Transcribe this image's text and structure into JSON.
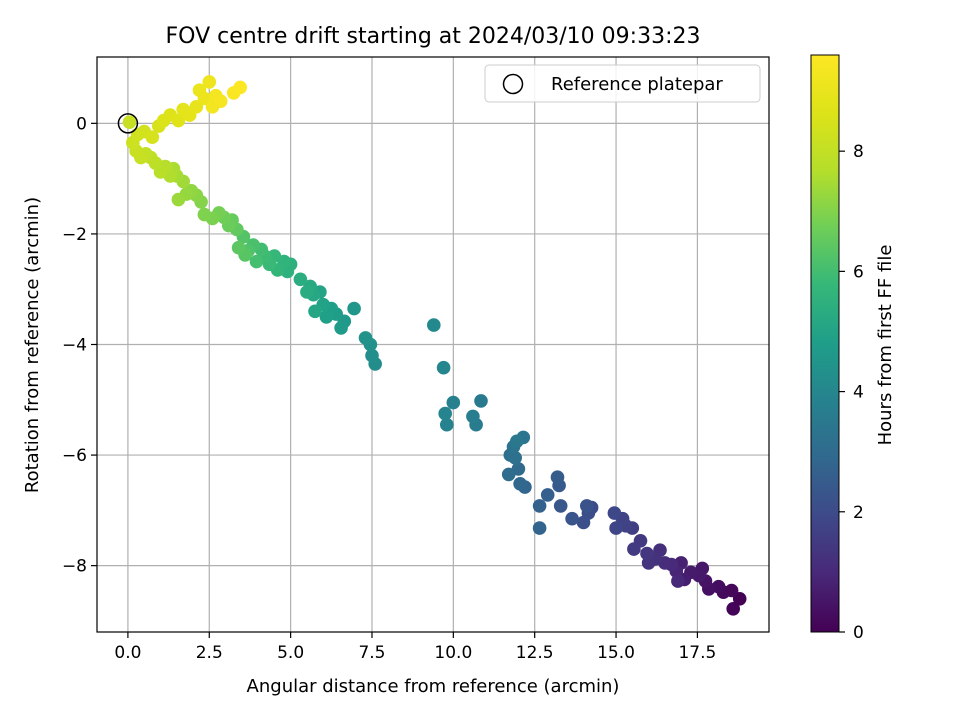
{
  "chart_data": {
    "type": "scatter",
    "title": "FOV centre drift starting at 2024/03/10 09:33:23",
    "xlabel": "Angular distance from reference (arcmin)",
    "ylabel": "Rotation from reference (arcmin)",
    "xlim": [
      -0.95,
      19.7
    ],
    "ylim": [
      -9.2,
      1.2
    ],
    "xticks": [
      "0.0",
      "2.5",
      "5.0",
      "7.5",
      "10.0",
      "12.5",
      "15.0",
      "17.5"
    ],
    "xtick_values": [
      0,
      2.5,
      5,
      7.5,
      10,
      12.5,
      15,
      17.5
    ],
    "yticks": [
      "0",
      "−2",
      "−4",
      "−6",
      "−8"
    ],
    "ytick_values": [
      0,
      -2,
      -4,
      -6,
      -8
    ],
    "grid": true,
    "legend": {
      "entries": [
        "Reference platepar"
      ],
      "position": "upper-right"
    },
    "reference_point": {
      "x": 0,
      "y": 0
    },
    "colormap": "viridis",
    "colorbar": {
      "label": "Hours from first FF file",
      "range": [
        0,
        9.6
      ],
      "ticks": [
        "0",
        "2",
        "4",
        "6",
        "8"
      ],
      "tick_values": [
        0,
        2,
        4,
        6,
        8
      ]
    },
    "points": [
      [
        18.8,
        -8.6,
        0.03
      ],
      [
        18.6,
        -8.78,
        0.08
      ],
      [
        18.55,
        -8.45,
        0.15
      ],
      [
        18.3,
        -8.48,
        0.22
      ],
      [
        18.15,
        -8.38,
        0.3
      ],
      [
        17.85,
        -8.42,
        0.38
      ],
      [
        17.75,
        -8.28,
        0.45
      ],
      [
        17.65,
        -8.05,
        0.52
      ],
      [
        17.55,
        -8.18,
        0.58
      ],
      [
        17.3,
        -8.12,
        0.65
      ],
      [
        17.1,
        -8.25,
        0.72
      ],
      [
        17.0,
        -7.95,
        0.8
      ],
      [
        16.85,
        -8.1,
        0.88
      ],
      [
        16.9,
        -8.28,
        0.95
      ],
      [
        16.7,
        -7.98,
        1.02
      ],
      [
        16.5,
        -7.95,
        1.1
      ],
      [
        16.35,
        -7.72,
        1.18
      ],
      [
        16.2,
        -7.88,
        1.25
      ],
      [
        16.0,
        -7.95,
        1.3
      ],
      [
        15.95,
        -7.78,
        1.38
      ],
      [
        15.75,
        -7.55,
        1.45
      ],
      [
        15.55,
        -7.7,
        1.52
      ],
      [
        15.5,
        -7.32,
        1.6
      ],
      [
        15.3,
        -7.28,
        1.68
      ],
      [
        15.2,
        -7.15,
        1.75
      ],
      [
        15.0,
        -7.32,
        1.82
      ],
      [
        14.95,
        -7.05,
        1.9
      ],
      [
        14.25,
        -6.95,
        2.0
      ],
      [
        14.15,
        -7.05,
        2.08
      ],
      [
        14.0,
        -7.22,
        2.15
      ],
      [
        14.1,
        -6.92,
        2.22
      ],
      [
        13.65,
        -7.15,
        2.3
      ],
      [
        13.3,
        -6.92,
        2.38
      ],
      [
        13.25,
        -6.55,
        2.45
      ],
      [
        13.2,
        -6.4,
        2.52
      ],
      [
        12.9,
        -6.72,
        2.6
      ],
      [
        12.65,
        -6.92,
        2.68
      ],
      [
        12.65,
        -7.32,
        2.75
      ],
      [
        12.2,
        -6.58,
        2.82
      ],
      [
        12.05,
        -6.52,
        2.9
      ],
      [
        12.0,
        -6.25,
        3.0
      ],
      [
        11.7,
        -6.35,
        3.08
      ],
      [
        11.75,
        -6.0,
        3.15
      ],
      [
        11.9,
        -6.05,
        3.22
      ],
      [
        11.85,
        -5.85,
        3.3
      ],
      [
        12.15,
        -5.68,
        3.38
      ],
      [
        11.95,
        -5.75,
        3.45
      ],
      [
        10.85,
        -5.02,
        3.55
      ],
      [
        10.7,
        -5.45,
        3.62
      ],
      [
        10.6,
        -5.3,
        3.7
      ],
      [
        10.0,
        -5.05,
        3.78
      ],
      [
        9.8,
        -5.45,
        3.85
      ],
      [
        9.75,
        -5.25,
        3.92
      ],
      [
        9.7,
        -4.42,
        4.0
      ],
      [
        9.4,
        -3.65,
        4.08
      ],
      [
        7.6,
        -4.35,
        4.2
      ],
      [
        7.5,
        -4.2,
        4.28
      ],
      [
        7.45,
        -4.0,
        4.35
      ],
      [
        7.3,
        -3.88,
        4.42
      ],
      [
        6.95,
        -3.35,
        4.52
      ],
      [
        6.65,
        -3.58,
        4.6
      ],
      [
        6.55,
        -3.7,
        4.68
      ],
      [
        6.4,
        -3.45,
        4.75
      ],
      [
        6.25,
        -3.35,
        4.82
      ],
      [
        6.1,
        -3.5,
        4.88
      ],
      [
        6.0,
        -3.28,
        4.95
      ],
      [
        5.9,
        -3.05,
        5.02
      ],
      [
        5.75,
        -3.4,
        5.08
      ],
      [
        5.7,
        -3.1,
        5.15
      ],
      [
        5.6,
        -2.95,
        5.22
      ],
      [
        5.5,
        -3.05,
        5.3
      ],
      [
        5.3,
        -2.82,
        5.38
      ],
      [
        5.0,
        -2.55,
        5.45
      ],
      [
        4.9,
        -2.68,
        5.52
      ],
      [
        4.8,
        -2.5,
        5.6
      ],
      [
        4.6,
        -2.65,
        5.68
      ],
      [
        4.5,
        -2.4,
        5.75
      ],
      [
        4.35,
        -2.55,
        5.82
      ],
      [
        4.2,
        -2.4,
        5.9
      ],
      [
        4.1,
        -2.28,
        5.98
      ],
      [
        3.95,
        -2.5,
        6.05
      ],
      [
        3.85,
        -2.2,
        6.12
      ],
      [
        3.7,
        -2.3,
        6.2
      ],
      [
        3.55,
        -2.05,
        6.28
      ],
      [
        3.6,
        -2.38,
        6.35
      ],
      [
        3.4,
        -2.25,
        6.42
      ],
      [
        3.35,
        -1.92,
        6.5
      ],
      [
        3.2,
        -1.75,
        6.58
      ],
      [
        3.1,
        -1.85,
        6.65
      ],
      [
        2.95,
        -1.7,
        6.72
      ],
      [
        2.8,
        -1.62,
        6.8
      ],
      [
        2.6,
        -1.72,
        6.88
      ],
      [
        2.35,
        -1.65,
        6.95
      ],
      [
        2.25,
        -1.42,
        7.02
      ],
      [
        2.1,
        -1.3,
        7.1
      ],
      [
        1.95,
        -1.22,
        7.18
      ],
      [
        1.8,
        -1.28,
        7.25
      ],
      [
        1.55,
        -1.38,
        7.32
      ],
      [
        1.7,
        -1.05,
        7.4
      ],
      [
        1.5,
        -0.95,
        7.48
      ],
      [
        1.4,
        -0.82,
        7.55
      ],
      [
        1.3,
        -0.95,
        7.62
      ],
      [
        1.15,
        -0.78,
        7.7
      ],
      [
        1.0,
        -0.88,
        7.78
      ],
      [
        0.85,
        -0.72,
        7.85
      ],
      [
        0.7,
        -0.62,
        7.92
      ],
      [
        0.55,
        -0.55,
        8.0
      ],
      [
        0.4,
        -0.62,
        8.08
      ],
      [
        0.25,
        -0.5,
        8.15
      ],
      [
        0.15,
        -0.35,
        8.22
      ],
      [
        0.3,
        -0.2,
        8.3
      ],
      [
        0.5,
        -0.15,
        8.38
      ],
      [
        0.75,
        -0.25,
        8.45
      ],
      [
        0.95,
        -0.05,
        8.52
      ],
      [
        1.1,
        0.05,
        8.6
      ],
      [
        1.3,
        0.15,
        8.68
      ],
      [
        1.55,
        0.05,
        8.75
      ],
      [
        1.7,
        0.25,
        8.82
      ],
      [
        1.9,
        0.15,
        8.88
      ],
      [
        2.1,
        0.3,
        8.95
      ],
      [
        2.2,
        0.6,
        9.02
      ],
      [
        2.35,
        0.45,
        9.1
      ],
      [
        2.5,
        0.75,
        9.18
      ],
      [
        2.6,
        0.3,
        9.25
      ],
      [
        2.7,
        0.5,
        9.32
      ],
      [
        2.85,
        0.4,
        9.4
      ],
      [
        3.25,
        0.55,
        9.48
      ],
      [
        3.45,
        0.65,
        9.55
      ],
      [
        0.05,
        0.02,
        8.1
      ]
    ]
  }
}
